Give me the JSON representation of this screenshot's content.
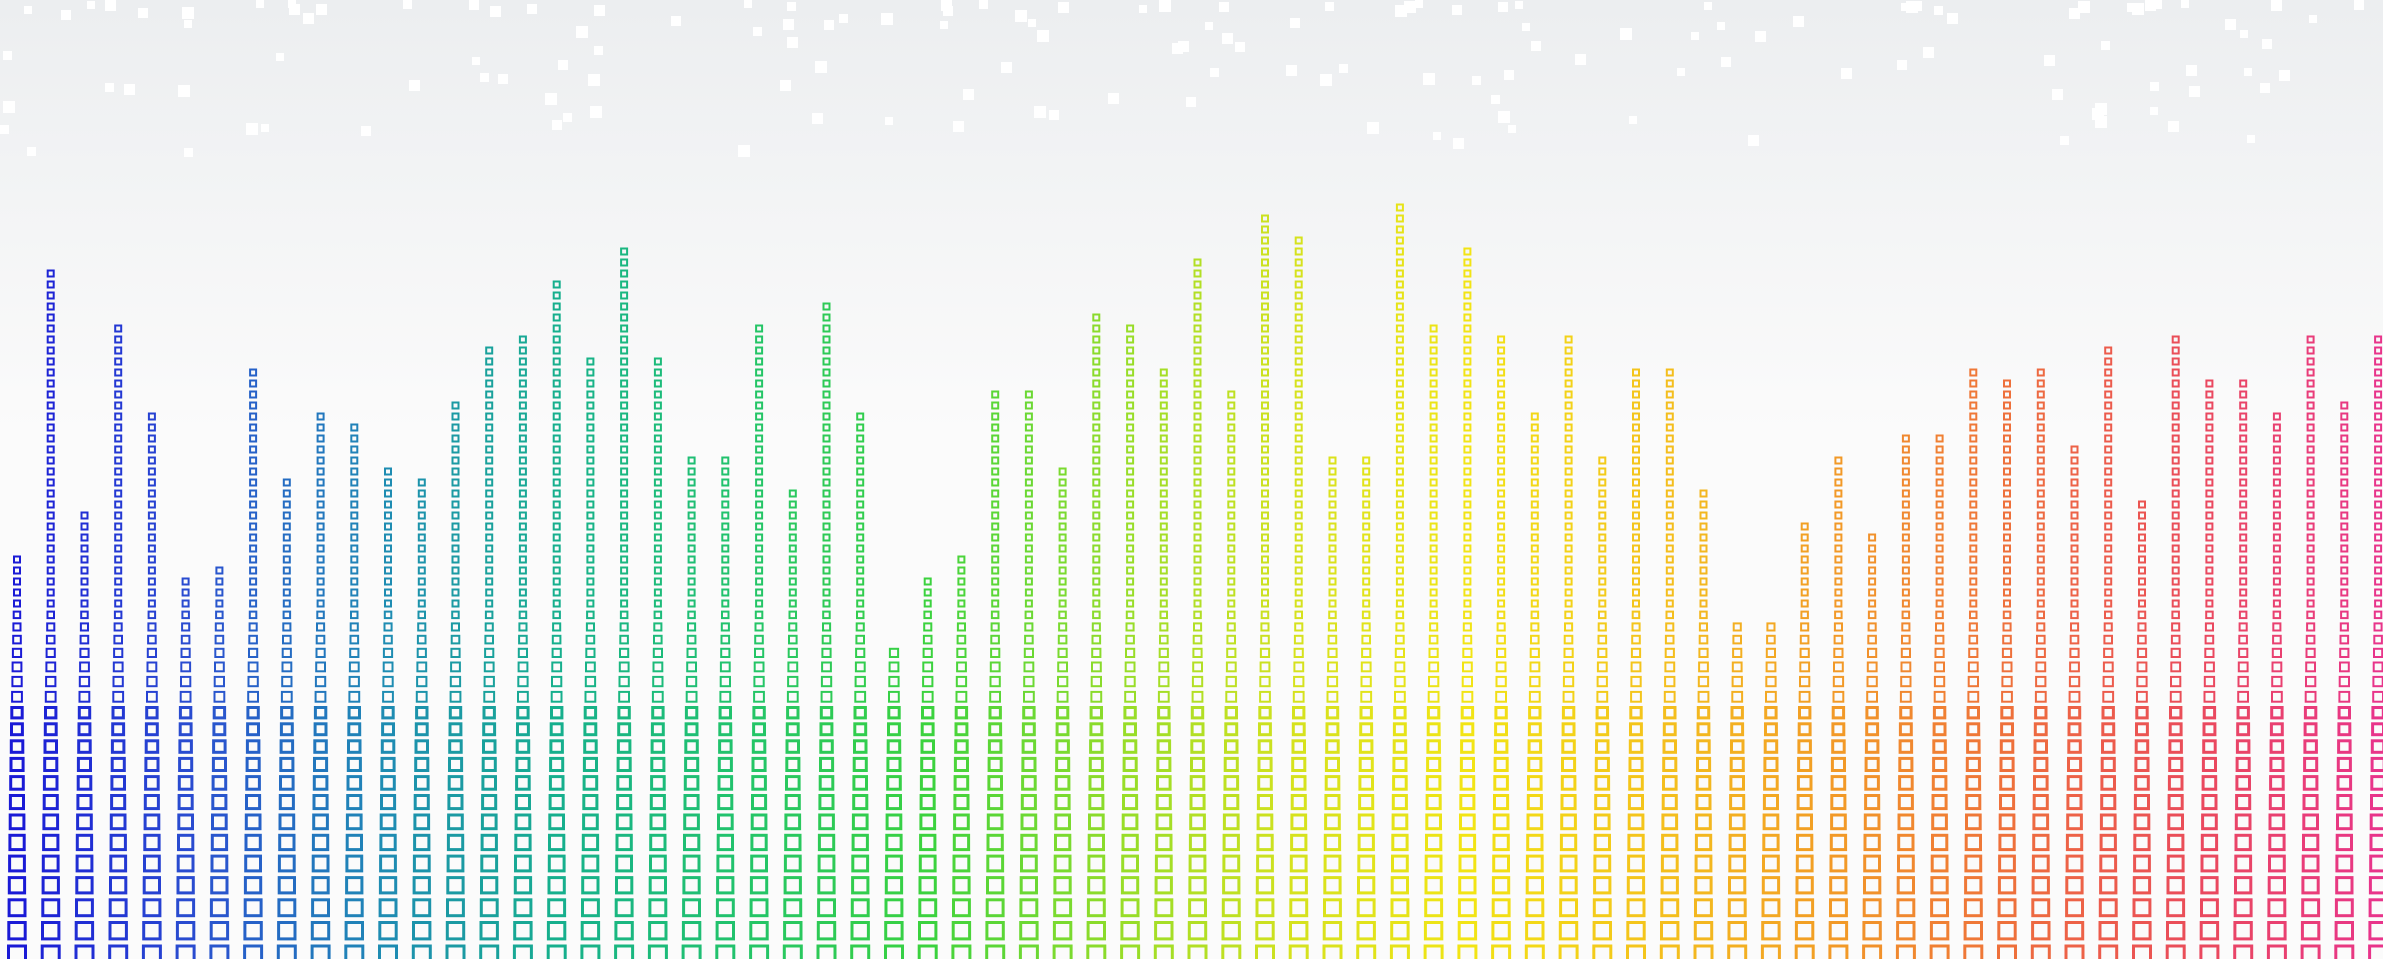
{
  "background": {
    "top_color": "#eceef0",
    "bottom_color": "#fbfbfb",
    "pixel_color": "#ffffff"
  },
  "palette": [
    "#1a1ad6",
    "#2a4fd0",
    "#1e8ab4",
    "#16b08c",
    "#22c46a",
    "#3ad23e",
    "#8fdc2a",
    "#d4e21e",
    "#f2e414",
    "#f4c21c",
    "#f29a26",
    "#ee6e3c",
    "#ea4a5c",
    "#e8348a"
  ],
  "equalizer_levels": [
    0.43,
    0.72,
    0.47,
    0.67,
    0.58,
    0.4,
    0.41,
    0.62,
    0.51,
    0.57,
    0.56,
    0.52,
    0.5,
    0.59,
    0.64,
    0.66,
    0.71,
    0.63,
    0.75,
    0.63,
    0.53,
    0.53,
    0.67,
    0.49,
    0.69,
    0.58,
    0.33,
    0.4,
    0.42,
    0.6,
    0.6,
    0.52,
    0.68,
    0.67,
    0.62,
    0.73,
    0.6,
    0.78,
    0.76,
    0.53,
    0.53,
    0.79,
    0.67,
    0.75,
    0.65,
    0.57,
    0.66,
    0.53,
    0.62,
    0.62,
    0.49,
    0.35,
    0.35,
    0.46,
    0.53,
    0.45,
    0.55,
    0.55,
    0.62,
    0.61,
    0.62,
    0.54,
    0.64,
    0.48,
    0.65,
    0.61,
    0.61,
    0.57,
    0.65,
    0.59,
    0.65
  ]
}
